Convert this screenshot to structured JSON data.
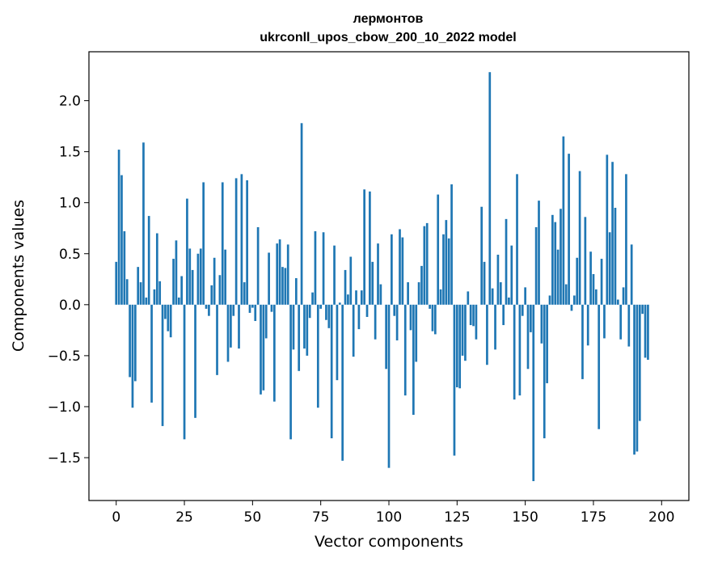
{
  "chart_data": {
    "type": "bar",
    "title_line1": "лермонтов",
    "title_line2": "ukrconll_upos_cbow_200_10_2022 model",
    "xlabel": "Vector components",
    "ylabel": "Components values",
    "xlim": [
      -10,
      210
    ],
    "ylim": [
      -1.92,
      2.48
    ],
    "xticks": [
      0,
      25,
      50,
      75,
      100,
      125,
      150,
      175,
      200
    ],
    "xtick_labels": [
      "0",
      "25",
      "50",
      "75",
      "100",
      "125",
      "150",
      "175",
      "200"
    ],
    "yticks": [
      -1.5,
      -1.0,
      -0.5,
      0.0,
      0.5,
      1.0,
      1.5,
      2.0
    ],
    "ytick_labels": [
      "−1.5",
      "−1.0",
      "−0.5",
      "0.0",
      "0.5",
      "1.0",
      "1.5",
      "2.0"
    ],
    "bar_color": "#1f77b4",
    "grid": false,
    "values": [
      0.42,
      1.52,
      1.27,
      0.72,
      0.25,
      -0.71,
      -1.01,
      -0.75,
      0.37,
      0.22,
      1.59,
      0.07,
      0.87,
      -0.96,
      0.15,
      0.7,
      0.23,
      -1.19,
      -0.14,
      -0.26,
      -0.32,
      0.45,
      0.63,
      0.07,
      0.28,
      -1.32,
      1.04,
      0.55,
      0.34,
      -1.11,
      0.5,
      0.55,
      1.2,
      -0.04,
      -0.11,
      0.19,
      0.46,
      -0.69,
      0.29,
      1.2,
      0.54,
      -0.56,
      -0.42,
      -0.11,
      1.24,
      -0.43,
      1.28,
      0.22,
      1.22,
      -0.08,
      -0.03,
      -0.16,
      0.76,
      -0.88,
      -0.84,
      -0.33,
      0.51,
      -0.07,
      -0.95,
      0.6,
      0.64,
      0.37,
      0.36,
      0.59,
      -1.32,
      -0.44,
      0.26,
      -0.65,
      1.78,
      -0.43,
      -0.5,
      -0.13,
      0.12,
      0.72,
      -1.01,
      -0.04,
      0.71,
      -0.15,
      -0.23,
      -1.31,
      0.58,
      -0.74,
      0.02,
      -1.53,
      0.34,
      0.1,
      0.47,
      -0.51,
      0.14,
      -0.24,
      0.14,
      1.13,
      -0.12,
      1.11,
      0.42,
      -0.34,
      0.6,
      0.2,
      0.0,
      -0.63,
      -1.6,
      0.69,
      -0.11,
      -0.35,
      0.74,
      0.66,
      -0.89,
      0.22,
      -0.25,
      -1.08,
      -0.56,
      0.22,
      0.38,
      0.77,
      0.8,
      -0.04,
      -0.26,
      -0.29,
      1.08,
      0.15,
      0.69,
      0.83,
      0.65,
      1.18,
      -1.48,
      -0.81,
      -0.82,
      -0.5,
      -0.55,
      0.13,
      -0.2,
      -0.21,
      -0.34,
      0.0,
      0.96,
      0.42,
      -0.59,
      2.28,
      0.16,
      -0.44,
      0.49,
      0.22,
      -0.2,
      0.84,
      0.07,
      0.58,
      -0.93,
      1.28,
      -0.89,
      -0.11,
      0.17,
      -0.63,
      -0.27,
      -1.73,
      0.76,
      1.02,
      -0.38,
      -1.31,
      -0.77,
      0.09,
      0.88,
      0.81,
      0.54,
      0.94,
      1.65,
      0.2,
      1.48,
      -0.06,
      0.09,
      0.46,
      1.31,
      -0.73,
      0.86,
      -0.4,
      0.52,
      0.3,
      0.15,
      -1.22,
      0.45,
      -0.33,
      1.47,
      0.71,
      1.4,
      0.95,
      0.05,
      -0.34,
      0.17,
      1.28,
      -0.41,
      0.59,
      -1.47,
      -1.44,
      -1.14,
      -0.09,
      -0.52,
      -0.54
    ]
  }
}
